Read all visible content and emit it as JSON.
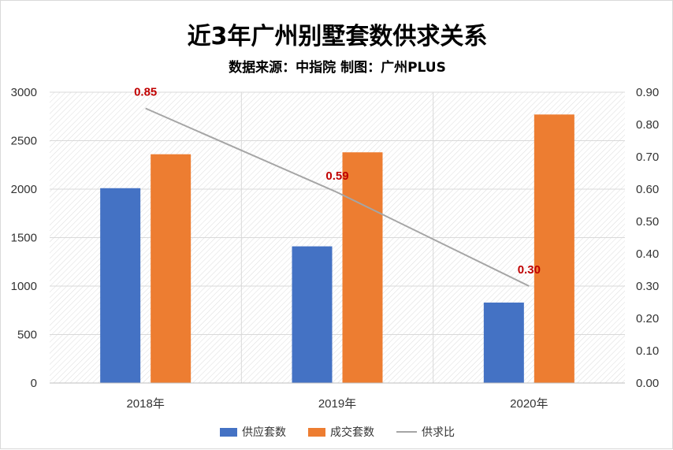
{
  "chart_data": {
    "type": "bar",
    "title": "近3年广州别墅套数供求关系",
    "subtitle": "数据来源：中指院 制图：广州PLUS",
    "categories": [
      "2018年",
      "2019年",
      "2020年"
    ],
    "series": [
      {
        "name": "供应套数",
        "type": "bar",
        "axis": "left",
        "color": "#4472c4",
        "values": [
          2010,
          1410,
          830
        ]
      },
      {
        "name": "成交套数",
        "type": "bar",
        "axis": "left",
        "color": "#ed7d31",
        "values": [
          2360,
          2380,
          2770
        ]
      },
      {
        "name": "供求比",
        "type": "line",
        "axis": "right",
        "color": "#a5a5a5",
        "values": [
          0.85,
          0.59,
          0.3
        ],
        "labels": [
          "0.85",
          "0.59",
          "0.30"
        ]
      }
    ],
    "left_axis": {
      "min": 0,
      "max": 3000,
      "ticks": [
        "0",
        "500",
        "1000",
        "1500",
        "2000",
        "2500",
        "3000"
      ]
    },
    "right_axis": {
      "min": 0,
      "max": 0.9,
      "ticks": [
        "0.00",
        "0.10",
        "0.20",
        "0.30",
        "0.40",
        "0.50",
        "0.60",
        "0.70",
        "0.80",
        "0.90"
      ]
    },
    "legend_position": "bottom",
    "grid": true
  }
}
